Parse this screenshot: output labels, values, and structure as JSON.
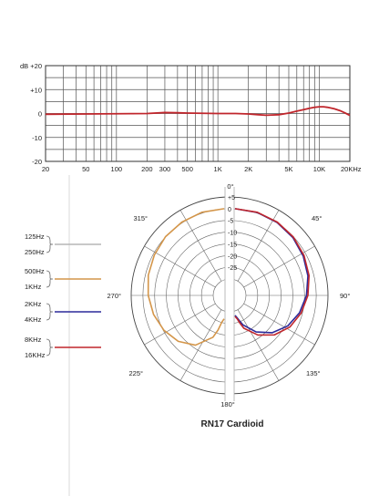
{
  "chart_data": [
    {
      "type": "line",
      "ylabel": "dB",
      "xlim": [
        20,
        20000
      ],
      "ylim": [
        -20,
        20
      ],
      "x_scale": "log",
      "grid": true,
      "y_ticks": [
        "+20",
        "+10",
        "0",
        "-10",
        "-20"
      ],
      "y_tick_values": [
        20,
        10,
        0,
        -10,
        -20
      ],
      "x_ticks": [
        "20",
        "50",
        "100",
        "200",
        "300",
        "500",
        "1K",
        "2K",
        "5K",
        "10K",
        "20KHz"
      ],
      "x_tick_values": [
        20,
        50,
        100,
        200,
        300,
        500,
        1000,
        2000,
        5000,
        10000,
        20000
      ],
      "series": [
        {
          "color": "#c0262c",
          "x": [
            20,
            50,
            100,
            200,
            300,
            400,
            500,
            700,
            1000,
            1500,
            2000,
            2500,
            3000,
            4000,
            5000,
            6000,
            7000,
            8000,
            9000,
            10000,
            11000,
            12000,
            14000,
            16000,
            18000,
            20000
          ],
          "values": [
            -0.3,
            -0.2,
            -0.1,
            0,
            0.4,
            0.3,
            0.2,
            0.1,
            0,
            0,
            -0.2,
            -0.5,
            -0.7,
            -0.5,
            0.2,
            1.0,
            1.6,
            2.2,
            2.6,
            2.8,
            2.8,
            2.6,
            2.0,
            1.2,
            0.2,
            -0.8
          ]
        }
      ]
    },
    {
      "type": "polar",
      "title": "RN17 Cardioid",
      "r_ticks": [
        "+5",
        "0",
        "-5",
        "-10",
        "-15",
        "-20",
        "-25"
      ],
      "r_tick_values": [
        5,
        0,
        -5,
        -10,
        -15,
        -20,
        -25
      ],
      "rlim": [
        -30,
        5
      ],
      "angle_labels": [
        "0°",
        "45°",
        "90°",
        "135°",
        "180°",
        "225°",
        "270°",
        "315°"
      ],
      "angles": [
        0,
        45,
        90,
        135,
        180,
        225,
        270,
        315
      ],
      "legend": [
        {
          "labels": [
            "125Hz",
            "250Hz"
          ],
          "color": "#b5b5b5"
        },
        {
          "labels": [
            "500Hz",
            "1KHz"
          ],
          "color": "#d4964a"
        },
        {
          "labels": [
            "2KHz",
            "4KHz"
          ],
          "color": "#2c2a9a"
        },
        {
          "labels": [
            "8KHz",
            "16KHz"
          ],
          "color": "#c0262c"
        }
      ],
      "series": [
        {
          "side": "left",
          "color": "#d4964a",
          "theta": [
            0,
            15,
            30,
            45,
            60,
            75,
            90,
            105,
            120,
            135,
            150,
            165,
            170,
            175,
            180
          ],
          "values": [
            0,
            -0.3,
            -0.9,
            -1.6,
            -2.6,
            -3.5,
            -4.6,
            -5.8,
            -7.3,
            -9.3,
            -12.5,
            -18.5,
            -22,
            -25.5,
            -27
          ]
        },
        {
          "side": "right",
          "color": "#2c2a9a",
          "theta": [
            0,
            15,
            30,
            45,
            60,
            75,
            90,
            105,
            120,
            135,
            150,
            165,
            170,
            175,
            180
          ],
          "values": [
            0,
            -0.4,
            -1.1,
            -2.1,
            -3.4,
            -4.8,
            -6.5,
            -8.5,
            -11,
            -14.5,
            -19,
            -24,
            -26,
            -27.5,
            -28.5
          ]
        },
        {
          "side": "right",
          "color": "#c0262c",
          "theta": [
            0,
            15,
            30,
            45,
            60,
            75,
            90,
            105,
            120,
            135,
            150,
            165,
            170,
            175,
            180
          ],
          "values": [
            0,
            -0.3,
            -0.9,
            -1.8,
            -3.0,
            -4.3,
            -5.9,
            -7.8,
            -10,
            -13.2,
            -17.5,
            -22.5,
            -25,
            -27,
            -28
          ]
        }
      ]
    }
  ]
}
